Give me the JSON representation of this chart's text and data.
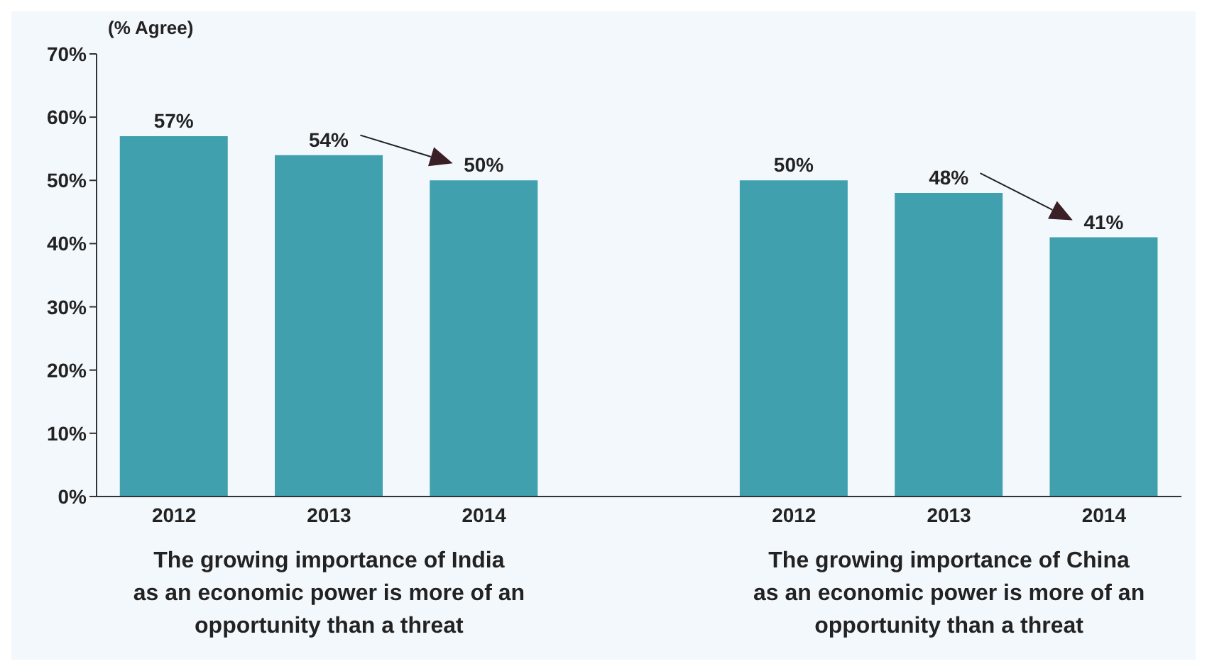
{
  "chart_data": {
    "type": "bar",
    "ylabel": "(% Agree)",
    "categories": [
      "2012",
      "2013",
      "2014",
      null,
      "2012",
      "2013",
      "2014"
    ],
    "values": [
      57,
      54,
      50,
      null,
      50,
      48,
      41
    ],
    "value_labels": [
      "57%",
      "54%",
      "50%",
      null,
      "50%",
      "48%",
      "41%"
    ],
    "color": "#40a0ae",
    "ylim": [
      0,
      70
    ],
    "yticks": [
      {
        "value": 0,
        "label": "0%"
      },
      {
        "value": 10,
        "label": "10%"
      },
      {
        "value": 20,
        "label": "20%"
      },
      {
        "value": 30,
        "label": "30%"
      },
      {
        "value": 40,
        "label": "40%"
      },
      {
        "value": 50,
        "label": "50%"
      },
      {
        "value": 60,
        "label": "60%"
      },
      {
        "value": 70,
        "label": "70%"
      }
    ],
    "grid": false,
    "annotations": [
      "The growing importance of India\nas an economic power is more of an\nopportunity than a threat",
      "The growing importance of China\nas an economic power is more of an\nopportunity than a threat"
    ]
  }
}
